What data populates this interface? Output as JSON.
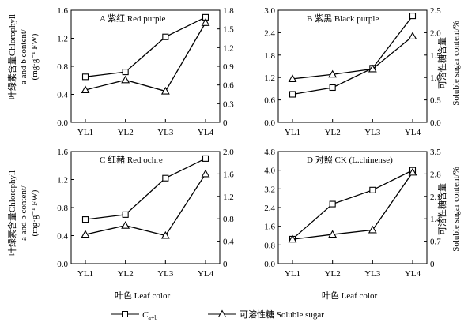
{
  "figure": {
    "left_axis_label": [
      "叶绿素含量Chlorophyll",
      "a and b content/",
      "(mg·g⁻¹ FW)"
    ],
    "right_axis_label": [
      "可溶性糖含量",
      "Soluble sugar content/%"
    ],
    "x_axis_label": "叶色  Leaf color",
    "legend": {
      "cab": "Ca+b",
      "sugar": "可溶性糖 Soluble sugar"
    }
  },
  "chart_data": [
    {
      "type": "line",
      "title": "A 紫红 Red purple",
      "categories": [
        "YL1",
        "YL2",
        "YL3",
        "YL4"
      ],
      "left_ticks": [
        "0.0",
        "0.4",
        "0.8",
        "1.2",
        "1.6"
      ],
      "right_ticks": [
        "0",
        "0.3",
        "0.6",
        "0.9",
        "1.2",
        "1.5",
        "1.8"
      ],
      "ylim_left": [
        0,
        1.6
      ],
      "ylim_right": [
        0,
        1.8
      ],
      "series": [
        {
          "name": "Ca+b",
          "axis": "left",
          "marker": "square",
          "values": [
            0.65,
            0.72,
            1.22,
            1.5
          ]
        },
        {
          "name": "可溶性糖 Soluble sugar",
          "axis": "right",
          "marker": "triangle",
          "values": [
            0.52,
            0.68,
            0.5,
            1.6
          ]
        }
      ]
    },
    {
      "type": "line",
      "title": "B 紫黑 Black purple",
      "categories": [
        "YL1",
        "YL2",
        "YL3",
        "YL4"
      ],
      "left_ticks": [
        "0.0",
        "0.6",
        "1.2",
        "1.8",
        "2.4",
        "3.0"
      ],
      "right_ticks": [
        "0.0",
        "0.5",
        "1.0",
        "1.5",
        "2.0",
        "2.5"
      ],
      "ylim_left": [
        0,
        3.0
      ],
      "ylim_right": [
        0,
        2.5
      ],
      "series": [
        {
          "name": "Ca+b",
          "axis": "left",
          "marker": "square",
          "values": [
            0.75,
            0.93,
            1.45,
            2.85
          ]
        },
        {
          "name": "可溶性糖 Soluble sugar",
          "axis": "right",
          "marker": "triangle",
          "values": [
            0.97,
            1.07,
            1.19,
            1.92
          ]
        }
      ]
    },
    {
      "type": "line",
      "title": "C 红赭 Red ochre",
      "categories": [
        "YL1",
        "YL2",
        "YL3",
        "YL4"
      ],
      "left_ticks": [
        "0.0",
        "0.4",
        "0.8",
        "1.2",
        "1.6"
      ],
      "right_ticks": [
        "0",
        "0.4",
        "0.8",
        "1.2",
        "1.6",
        "2.0"
      ],
      "ylim_left": [
        0,
        1.6
      ],
      "ylim_right": [
        0,
        2.0
      ],
      "series": [
        {
          "name": "Ca+b",
          "axis": "left",
          "marker": "square",
          "values": [
            0.63,
            0.7,
            1.22,
            1.5
          ]
        },
        {
          "name": "可溶性糖 Soluble sugar",
          "axis": "right",
          "marker": "triangle",
          "values": [
            0.52,
            0.68,
            0.5,
            1.6
          ]
        }
      ]
    },
    {
      "type": "line",
      "title": "D 对照 CK (L.chinense)",
      "categories": [
        "YL1",
        "YL2",
        "YL3",
        "YL4"
      ],
      "left_ticks": [
        "0.0",
        "0.8",
        "1.6",
        "2.4",
        "3.2",
        "4.0",
        "4.8"
      ],
      "right_ticks": [
        "0",
        "0.7",
        "1.4",
        "2.1",
        "2.8",
        "3.5"
      ],
      "ylim_left": [
        0,
        4.8
      ],
      "ylim_right": [
        0,
        3.5
      ],
      "series": [
        {
          "name": "Ca+b",
          "axis": "left",
          "marker": "square",
          "values": [
            1.05,
            2.55,
            3.15,
            4.0
          ]
        },
        {
          "name": "可溶性糖 Soluble sugar",
          "axis": "right",
          "marker": "triangle",
          "values": [
            0.76,
            0.91,
            1.05,
            2.85
          ]
        }
      ]
    }
  ]
}
